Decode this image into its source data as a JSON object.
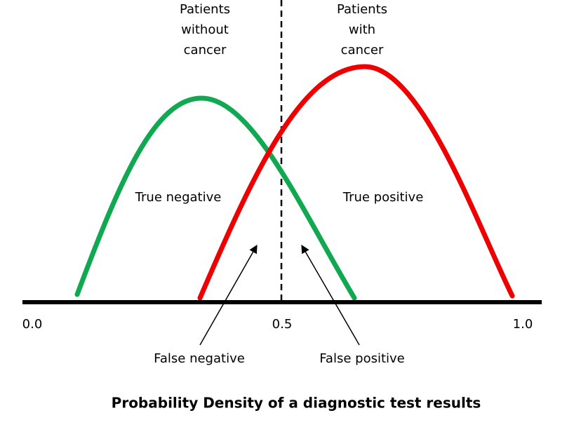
{
  "group_labels": [
    [
      "Patients",
      "without",
      "cancer"
    ],
    [
      "Patients",
      "with",
      "cancer"
    ]
  ],
  "region_labels": [
    "True negative",
    "True positive"
  ],
  "axis_ticks": [
    "0.0",
    "0.5",
    "1.0"
  ],
  "error_labels": [
    "False negative",
    "False positive"
  ],
  "title": "Probability Density of a diagnostic test results"
}
